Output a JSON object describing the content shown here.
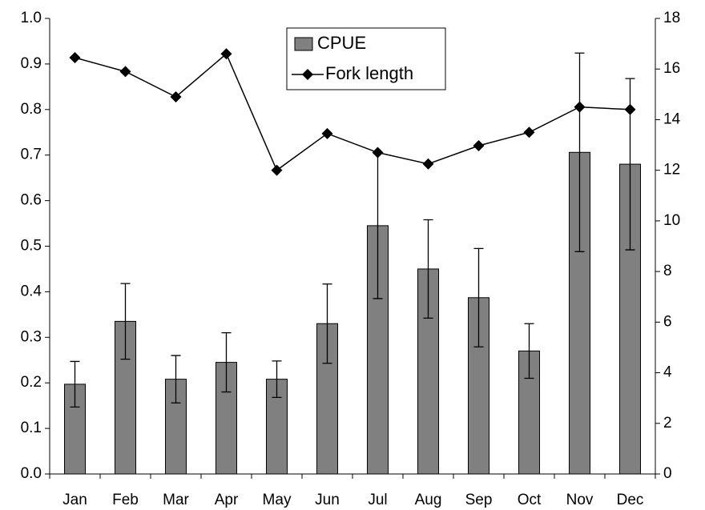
{
  "chart_data": {
    "type": "bar_line",
    "categories": [
      "Jan",
      "Feb",
      "Mar",
      "Apr",
      "May",
      "Jun",
      "Jul",
      "Aug",
      "Sep",
      "Oct",
      "Nov",
      "Dec"
    ],
    "series": [
      {
        "name": "CPUE",
        "type": "bar",
        "color": "#808080",
        "values": [
          0.197,
          0.335,
          0.208,
          0.245,
          0.208,
          0.33,
          0.545,
          0.45,
          0.387,
          0.27,
          0.706,
          0.68
        ],
        "errors": [
          0.05,
          0.083,
          0.052,
          0.065,
          0.04,
          0.087,
          0.16,
          0.108,
          0.108,
          0.06,
          0.218,
          0.188
        ]
      },
      {
        "name": "Fork length",
        "type": "line",
        "axis": "y2",
        "color": "#000000",
        "values": [
          16.45,
          15.9,
          14.9,
          16.6,
          12.0,
          13.45,
          12.7,
          12.25,
          12.97,
          13.5,
          14.5,
          14.4
        ]
      }
    ],
    "ylim": [
      0,
      1
    ],
    "yticks": [
      {
        "value": 0,
        "label": "0.0"
      },
      0.1,
      0.2,
      0.3,
      0.4,
      0.5,
      0.6,
      0.7,
      0.8,
      0.9,
      {
        "value": 1,
        "label": "1.0"
      }
    ],
    "y2lim": [
      0,
      18
    ],
    "y2ticks": [
      0,
      2,
      4,
      6,
      8,
      10,
      12,
      14,
      16,
      18
    ],
    "legend": "top"
  }
}
